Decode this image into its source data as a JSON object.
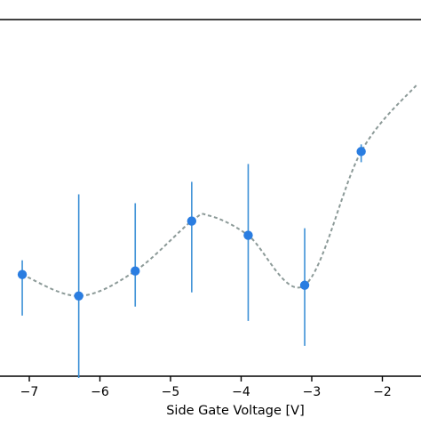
{
  "chart_data": {
    "type": "scatter",
    "title": "",
    "xlabel": "Side Gate Voltage [V]",
    "ylabel": "",
    "xlim": [
      -7.2,
      -1.5
    ],
    "ylim": [
      0,
      1
    ],
    "grid": false,
    "legend": "none",
    "x_ticks": [
      -7,
      -6,
      -5,
      -4,
      -3,
      -2
    ],
    "x_tick_labels": [
      "−7",
      "−6",
      "−5",
      "−4",
      "−3",
      "−2"
    ],
    "series": [
      {
        "kind": "points-with-error-bars",
        "color": "#2a7de1",
        "error_color": "#3a8fd6",
        "points": [
          {
            "x": -7.1,
            "y": 0.285,
            "err_low": 0.115,
            "err_high": 0.04
          },
          {
            "x": -6.3,
            "y": 0.225,
            "err_low": 0.23,
            "err_high": 0.285
          },
          {
            "x": -5.5,
            "y": 0.295,
            "err_low": 0.1,
            "err_high": 0.19
          },
          {
            "x": -4.7,
            "y": 0.435,
            "err_low": 0.2,
            "err_high": 0.11
          },
          {
            "x": -3.9,
            "y": 0.395,
            "err_low": 0.24,
            "err_high": 0.2
          },
          {
            "x": -3.1,
            "y": 0.255,
            "err_low": 0.17,
            "err_high": 0.16
          },
          {
            "x": -2.3,
            "y": 0.63,
            "err_low": 0.03,
            "err_high": 0.02
          }
        ]
      },
      {
        "kind": "fit-curve",
        "style": "dashed",
        "color": "#8c9a98",
        "x": [
          -7.1,
          -6.3,
          -5.5,
          -4.7,
          -4.45,
          -3.9,
          -3.1,
          -2.3,
          -1.5
        ],
        "y": [
          0.285,
          0.225,
          0.295,
          0.435,
          0.45,
          0.395,
          0.255,
          0.63,
          0.82
        ]
      }
    ]
  }
}
